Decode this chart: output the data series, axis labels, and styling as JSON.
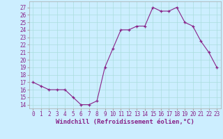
{
  "x": [
    0,
    1,
    2,
    3,
    4,
    5,
    6,
    7,
    8,
    9,
    10,
    11,
    12,
    13,
    14,
    15,
    16,
    17,
    18,
    19,
    20,
    21,
    22,
    23
  ],
  "y": [
    17,
    16.5,
    16,
    16,
    16,
    15,
    14,
    14,
    14.5,
    19,
    21.5,
    24,
    24,
    24.5,
    24.5,
    27,
    26.5,
    26.5,
    27,
    25,
    24.5,
    22.5,
    21,
    19
  ],
  "line_color": "#882288",
  "marker": "+",
  "marker_color": "#882288",
  "bg_color": "#cceeff",
  "grid_color": "#aadddd",
  "ylabel_ticks": [
    14,
    15,
    16,
    17,
    18,
    19,
    20,
    21,
    22,
    23,
    24,
    25,
    26,
    27
  ],
  "xlabel_ticks": [
    0,
    1,
    2,
    3,
    4,
    5,
    6,
    7,
    8,
    9,
    10,
    11,
    12,
    13,
    14,
    15,
    16,
    17,
    18,
    19,
    20,
    21,
    22,
    23
  ],
  "xlabel": "Windchill (Refroidissement éolien,°C)",
  "ylim": [
    13.5,
    27.8
  ],
  "xlim": [
    -0.5,
    23.5
  ],
  "tick_fontsize": 5.5,
  "label_fontsize": 6.5
}
